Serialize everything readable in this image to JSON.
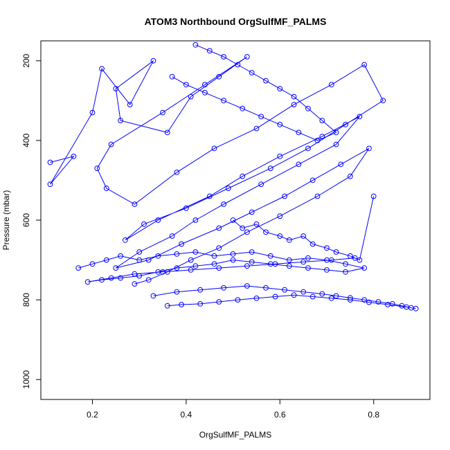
{
  "chart_data": {
    "type": "line",
    "title": "ATOM3 Northbound OrgSulfMF_PALMS",
    "xlabel": "OrgSulfMF_PALMS",
    "ylabel": "Pressure (mbar)",
    "xlim": [
      0.09,
      0.92
    ],
    "ylim": [
      1050,
      150
    ],
    "y_reversed": true,
    "x_ticks": [
      0.2,
      0.4,
      0.6,
      0.8
    ],
    "x_tick_labels": [
      "0.2",
      "0.4",
      "0.6",
      "0.8"
    ],
    "y_ticks": [
      200,
      400,
      600,
      800,
      1000
    ],
    "y_tick_labels": [
      "200",
      "400",
      "600",
      "800",
      "1000"
    ],
    "grid": false,
    "legend": "none",
    "marker": "open-circle",
    "color": "#0000ff",
    "series": [
      {
        "x": [
          0.11,
          0.16,
          0.11,
          0.2,
          0.22,
          0.28,
          0.33,
          0.25,
          0.26,
          0.36,
          0.41,
          0.47,
          0.53,
          0.44,
          0.35,
          0.24,
          0.21,
          0.23,
          0.29,
          0.38,
          0.46,
          0.55,
          0.63,
          0.71,
          0.78,
          0.82,
          0.74,
          0.66,
          0.58,
          0.49,
          0.4,
          0.31,
          0.27,
          0.34,
          0.45,
          0.52,
          0.6,
          0.69,
          0.77,
          0.72,
          0.64,
          0.56,
          0.48,
          0.42,
          0.37,
          0.3,
          0.25,
          0.32,
          0.39,
          0.47,
          0.54,
          0.61,
          0.67,
          0.73,
          0.79,
          0.75,
          0.68,
          0.6,
          0.53,
          0.47,
          0.41,
          0.36,
          0.32,
          0.29
        ],
        "y": [
          455,
          440,
          510,
          330,
          220,
          310,
          200,
          270,
          350,
          380,
          290,
          240,
          190,
          260,
          330,
          410,
          470,
          520,
          560,
          480,
          420,
          370,
          310,
          260,
          210,
          300,
          360,
          420,
          470,
          520,
          570,
          610,
          650,
          600,
          540,
          490,
          440,
          390,
          340,
          410,
          460,
          510,
          560,
          600,
          640,
          680,
          720,
          700,
          660,
          620,
          580,
          540,
          500,
          460,
          420,
          490,
          540,
          590,
          630,
          670,
          700,
          730,
          750,
          760
        ]
      },
      {
        "x": [
          0.17,
          0.2,
          0.23,
          0.26,
          0.3,
          0.34,
          0.38,
          0.42,
          0.46,
          0.5,
          0.54,
          0.58,
          0.62,
          0.66,
          0.7,
          0.74,
          0.78,
          0.74,
          0.7,
          0.66,
          0.62,
          0.58,
          0.54,
          0.5,
          0.46,
          0.42,
          0.38,
          0.34,
          0.3,
          0.26,
          0.22,
          0.19,
          0.24,
          0.29,
          0.35,
          0.41,
          0.47,
          0.53,
          0.59,
          0.65,
          0.71,
          0.76
        ],
        "y": [
          720,
          710,
          700,
          690,
          700,
          690,
          685,
          680,
          690,
          685,
          680,
          690,
          700,
          695,
          700,
          710,
          720,
          730,
          725,
          720,
          715,
          710,
          705,
          700,
          710,
          715,
          720,
          730,
          740,
          745,
          750,
          755,
          745,
          735,
          730,
          725,
          720,
          715,
          710,
          705,
          700,
          695
        ]
      },
      {
        "x": [
          0.33,
          0.38,
          0.43,
          0.48,
          0.53,
          0.57,
          0.61,
          0.65,
          0.69,
          0.72,
          0.75,
          0.78,
          0.81,
          0.84,
          0.86,
          0.88,
          0.89,
          0.87,
          0.83,
          0.79,
          0.75,
          0.71,
          0.67,
          0.63,
          0.59,
          0.55,
          0.51,
          0.47,
          0.43,
          0.39,
          0.36
        ],
        "y": [
          790,
          780,
          775,
          770,
          765,
          770,
          775,
          780,
          785,
          790,
          795,
          800,
          805,
          810,
          815,
          820,
          822,
          818,
          812,
          806,
          800,
          796,
          792,
          788,
          792,
          796,
          800,
          805,
          810,
          812,
          815
        ]
      },
      {
        "x": [
          0.42,
          0.45,
          0.48,
          0.51,
          0.54,
          0.57,
          0.6,
          0.63,
          0.66,
          0.69,
          0.72,
          0.68,
          0.64,
          0.6,
          0.56,
          0.52,
          0.48,
          0.44,
          0.4,
          0.37
        ],
        "y": [
          160,
          175,
          190,
          210,
          230,
          250,
          270,
          290,
          320,
          350,
          380,
          400,
          380,
          360,
          340,
          320,
          300,
          280,
          260,
          240
        ]
      },
      {
        "x": [
          0.5,
          0.52,
          0.55,
          0.57,
          0.6,
          0.62,
          0.65,
          0.67,
          0.7,
          0.72,
          0.75,
          0.77,
          0.8
        ],
        "y": [
          600,
          620,
          610,
          630,
          640,
          650,
          640,
          660,
          670,
          680,
          690,
          700,
          540
        ]
      }
    ]
  }
}
